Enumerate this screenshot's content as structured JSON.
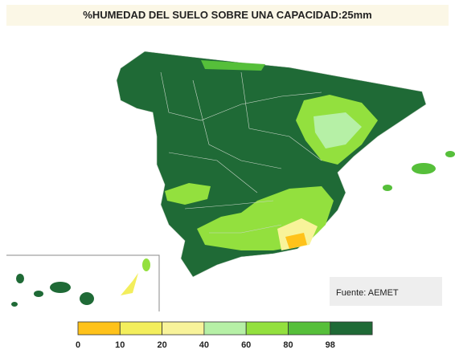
{
  "header": {
    "title": "%HUMEDAD DEL SUELO SOBRE UNA CAPACIDAD:25mm"
  },
  "legend": {
    "labels": [
      0,
      10,
      20,
      40,
      60,
      80,
      98
    ],
    "colors": [
      "#ffc21a",
      "#f3ee5c",
      "#f8f39a",
      "#b6f0a6",
      "#93e03e",
      "#56bf3a",
      "#1f6a36"
    ]
  },
  "source": "Fuente: AEMET"
}
